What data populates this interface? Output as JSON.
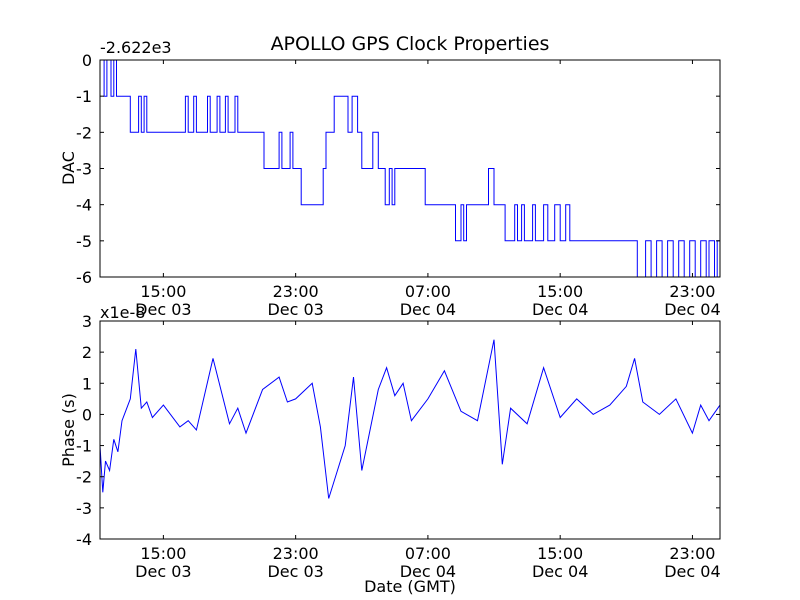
{
  "chart_data": [
    {
      "type": "line",
      "title": "APOLLO GPS Clock Properties",
      "ylabel": "DAC",
      "xlabel": "",
      "y_offset_label": "-2.622e3",
      "ylim": [
        -6,
        0
      ],
      "y_ticks": [
        0,
        -1,
        -2,
        -3,
        -4,
        -5,
        -6
      ],
      "y_tick_labels": [
        "0",
        "-1",
        "-2",
        "-3",
        "-4",
        "-5",
        "-6"
      ],
      "xlim": [
        "2012-12-03T11:10",
        "2012-12-05T00:40"
      ],
      "x_ticks": [
        "2012-12-03T15:00",
        "2012-12-03T23:00",
        "2012-12-04T07:00",
        "2012-12-04T15:00",
        "2012-12-04T23:00"
      ],
      "x_tick_labels": [
        [
          "15:00",
          "Dec 03"
        ],
        [
          "23:00",
          "Dec 03"
        ],
        [
          "07:00",
          "Dec 04"
        ],
        [
          "15:00",
          "Dec 04"
        ],
        [
          "23:00",
          "Dec 04"
        ]
      ],
      "grid": false,
      "series": [
        {
          "color": "#0000ff",
          "step": true,
          "x": [
            "2012-12-03T11:10",
            "2012-12-03T11:25",
            "2012-12-03T11:35",
            "2012-12-03T11:50",
            "2012-12-03T12:00",
            "2012-12-03T12:10",
            "2012-12-03T12:20",
            "2012-12-03T13:00",
            "2012-12-03T13:30",
            "2012-12-03T13:40",
            "2012-12-03T13:50",
            "2012-12-03T14:00",
            "2012-12-03T14:40",
            "2012-12-03T16:20",
            "2012-12-03T16:30",
            "2012-12-03T16:50",
            "2012-12-03T17:00",
            "2012-12-03T17:40",
            "2012-12-03T17:50",
            "2012-12-03T18:15",
            "2012-12-03T18:25",
            "2012-12-03T18:45",
            "2012-12-03T18:55",
            "2012-12-03T19:20",
            "2012-12-03T19:30",
            "2012-12-03T20:50",
            "2012-12-03T21:05",
            "2012-12-03T22:00",
            "2012-12-03T22:10",
            "2012-12-03T22:40",
            "2012-12-03T22:50",
            "2012-12-03T23:10",
            "2012-12-03T23:20",
            "2012-12-04T00:40",
            "2012-12-04T00:50",
            "2012-12-04T01:20",
            "2012-12-04T02:10",
            "2012-12-04T02:25",
            "2012-12-04T02:45",
            "2012-12-04T03:00",
            "2012-12-04T03:40",
            "2012-12-04T04:00",
            "2012-12-04T04:25",
            "2012-12-04T04:40",
            "2012-12-04T04:50",
            "2012-12-04T05:00",
            "2012-12-04T05:10",
            "2012-12-04T06:50",
            "2012-12-04T07:50",
            "2012-12-04T08:40",
            "2012-12-04T09:00",
            "2012-12-04T09:10",
            "2012-12-04T09:20",
            "2012-12-04T10:30",
            "2012-12-04T10:40",
            "2012-12-04T11:00",
            "2012-12-04T11:25",
            "2012-12-04T11:40",
            "2012-12-04T12:15",
            "2012-12-04T12:25",
            "2012-12-04T12:40",
            "2012-12-04T12:50",
            "2012-12-04T13:20",
            "2012-12-04T13:30",
            "2012-12-04T14:00",
            "2012-12-04T14:15",
            "2012-12-04T14:40",
            "2012-12-04T15:00",
            "2012-12-04T15:20",
            "2012-12-04T15:35",
            "2012-12-04T16:00",
            "2012-12-04T19:40",
            "2012-12-04T20:10",
            "2012-12-04T20:30",
            "2012-12-04T20:50",
            "2012-12-04T21:10",
            "2012-12-04T21:30",
            "2012-12-04T21:50",
            "2012-12-04T22:10",
            "2012-12-04T22:30",
            "2012-12-04T22:50",
            "2012-12-04T23:10",
            "2012-12-04T23:30",
            "2012-12-04T23:50",
            "2012-12-05T00:00",
            "2012-12-05T00:20",
            "2012-12-05T00:30",
            "2012-12-05T00:40"
          ],
          "values": [
            0,
            -1,
            0,
            -1,
            0,
            -1,
            -1,
            -2,
            -1,
            -2,
            -1,
            -2,
            -2,
            -1,
            -2,
            -1,
            -2,
            -1,
            -2,
            -1,
            -2,
            -1,
            -2,
            -1,
            -2,
            -2,
            -3,
            -2,
            -3,
            -2,
            -3,
            -3,
            -4,
            -3,
            -2,
            -1,
            -2,
            -1,
            -2,
            -3,
            -2,
            -3,
            -4,
            -3,
            -4,
            -3,
            -3,
            -4,
            -4,
            -5,
            -4,
            -5,
            -4,
            -4,
            -3,
            -4,
            -4,
            -5,
            -4,
            -5,
            -4,
            -5,
            -4,
            -5,
            -4,
            -5,
            -4,
            -5,
            -4,
            -5,
            -5,
            -6,
            -5,
            -6,
            -5,
            -6,
            -5,
            -6,
            -5,
            -6,
            -5,
            -6,
            -5,
            -6,
            -5,
            -6,
            -5,
            -5
          ]
        }
      ]
    },
    {
      "type": "line",
      "title": "",
      "ylabel": "Phase (s)",
      "xlabel": "Date (GMT)",
      "y_offset_label": "x1e-8",
      "ylim": [
        -4,
        3
      ],
      "y_ticks": [
        3,
        2,
        1,
        0,
        -1,
        -2,
        -3,
        -4
      ],
      "y_tick_labels": [
        "3",
        "2",
        "1",
        "0",
        "-1",
        "-2",
        "-3",
        "-4"
      ],
      "xlim": [
        "2012-12-03T11:10",
        "2012-12-05T00:40"
      ],
      "x_ticks": [
        "2012-12-03T15:00",
        "2012-12-03T23:00",
        "2012-12-04T07:00",
        "2012-12-04T15:00",
        "2012-12-04T23:00"
      ],
      "x_tick_labels": [
        [
          "15:00",
          "Dec 03"
        ],
        [
          "23:00",
          "Dec 03"
        ],
        [
          "07:00",
          "Dec 04"
        ],
        [
          "15:00",
          "Dec 04"
        ],
        [
          "23:00",
          "Dec 04"
        ]
      ],
      "grid": false,
      "series": [
        {
          "color": "#0000ff",
          "x": [
            "2012-12-03T11:10",
            "2012-12-03T11:20",
            "2012-12-03T11:30",
            "2012-12-03T11:45",
            "2012-12-03T12:00",
            "2012-12-03T12:15",
            "2012-12-03T12:30",
            "2012-12-03T13:00",
            "2012-12-03T13:20",
            "2012-12-03T13:40",
            "2012-12-03T14:00",
            "2012-12-03T14:20",
            "2012-12-03T15:00",
            "2012-12-03T16:00",
            "2012-12-03T16:30",
            "2012-12-03T17:00",
            "2012-12-03T18:00",
            "2012-12-03T19:00",
            "2012-12-03T19:30",
            "2012-12-03T20:00",
            "2012-12-03T21:00",
            "2012-12-03T22:00",
            "2012-12-03T22:30",
            "2012-12-03T23:00",
            "2012-12-04T00:00",
            "2012-12-04T00:30",
            "2012-12-04T01:00",
            "2012-12-04T02:00",
            "2012-12-04T02:30",
            "2012-12-04T03:00",
            "2012-12-04T04:00",
            "2012-12-04T04:30",
            "2012-12-04T05:00",
            "2012-12-04T05:30",
            "2012-12-04T06:00",
            "2012-12-04T07:00",
            "2012-12-04T08:00",
            "2012-12-04T09:00",
            "2012-12-04T10:00",
            "2012-12-04T11:00",
            "2012-12-04T11:30",
            "2012-12-04T12:00",
            "2012-12-04T13:00",
            "2012-12-04T14:00",
            "2012-12-04T15:00",
            "2012-12-04T16:00",
            "2012-12-04T17:00",
            "2012-12-04T18:00",
            "2012-12-04T19:00",
            "2012-12-04T19:30",
            "2012-12-04T20:00",
            "2012-12-04T21:00",
            "2012-12-04T22:00",
            "2012-12-04T23:00",
            "2012-12-04T23:30",
            "2012-12-05T00:00",
            "2012-12-05T00:40"
          ],
          "values": [
            -1.0,
            -2.5,
            -1.5,
            -1.8,
            -0.8,
            -1.2,
            -0.2,
            0.5,
            2.1,
            0.2,
            0.4,
            -0.1,
            0.3,
            -0.4,
            -0.2,
            -0.5,
            1.8,
            -0.3,
            0.2,
            -0.6,
            0.8,
            1.2,
            0.4,
            0.5,
            1.0,
            -0.4,
            -2.7,
            -1.0,
            1.2,
            -1.8,
            0.8,
            1.5,
            0.6,
            1.0,
            -0.2,
            0.5,
            1.4,
            0.1,
            -0.2,
            2.4,
            -1.6,
            0.2,
            -0.3,
            1.5,
            -0.1,
            0.5,
            0.0,
            0.3,
            0.9,
            1.8,
            0.4,
            0.0,
            0.5,
            -0.6,
            0.3,
            -0.2,
            0.3
          ]
        }
      ]
    }
  ]
}
